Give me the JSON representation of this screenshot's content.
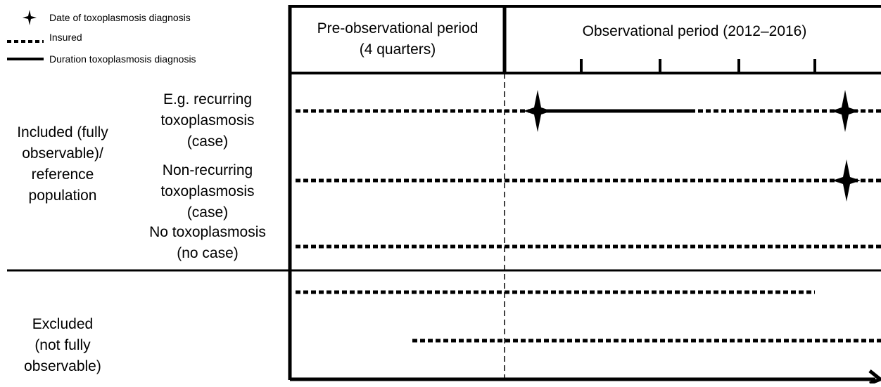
{
  "legend": {
    "items": [
      {
        "key": "diagnosis",
        "label": "Date of toxoplasmosis diagnosis",
        "icon": "four-point-star-icon"
      },
      {
        "key": "insured",
        "label": "Insured",
        "icon": "dotted-line-icon"
      },
      {
        "key": "duration",
        "label": "Duration toxoplasmosis diagnosis",
        "icon": "solid-line-icon"
      }
    ]
  },
  "header": {
    "pre_period": [
      "Pre-observational period",
      "(4 quarters)"
    ],
    "obs_period": "Observational period (2012–2016)"
  },
  "groups": {
    "included": [
      "Included (fully",
      "observable)/",
      "reference",
      "population"
    ],
    "excluded": [
      "Excluded",
      "(not fully",
      "observable)"
    ]
  },
  "rows": {
    "recurring": [
      "E.g. recurring",
      "toxoplasmosis",
      "(case)"
    ],
    "nonrecurring": [
      "Non-recurring",
      "toxoplasmosis",
      "(case)"
    ],
    "none": [
      "No toxoplasmosis",
      "(no case)"
    ]
  },
  "colors": {
    "ink": "#000000",
    "background": "#ffffff"
  }
}
